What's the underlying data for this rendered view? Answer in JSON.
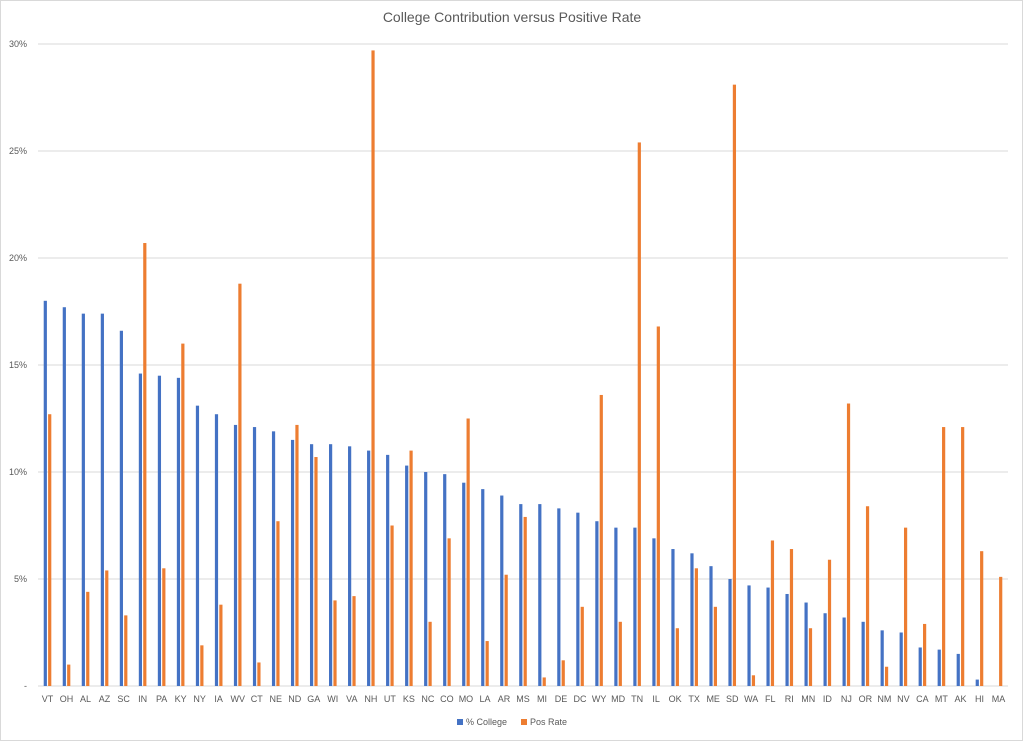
{
  "chart_data": {
    "type": "bar",
    "title": "College Contribution versus Positive Rate",
    "xlabel": "",
    "ylabel": "",
    "ylim": [
      0,
      0.3
    ],
    "yticks": [
      0,
      0.05,
      0.1,
      0.15,
      0.2,
      0.25,
      0.3
    ],
    "ytick_labels": [
      "-",
      "5%",
      "10%",
      "15%",
      "20%",
      "25%",
      "30%"
    ],
    "grid": true,
    "legend_position": "bottom",
    "categories": [
      "VT",
      "OH",
      "AL",
      "AZ",
      "SC",
      "IN",
      "PA",
      "KY",
      "NY",
      "IA",
      "WV",
      "CT",
      "NE",
      "ND",
      "GA",
      "WI",
      "VA",
      "NH",
      "UT",
      "KS",
      "NC",
      "CO",
      "MO",
      "LA",
      "AR",
      "MS",
      "MI",
      "DE",
      "DC",
      "WY",
      "MD",
      "TN",
      "IL",
      "OK",
      "TX",
      "ME",
      "SD",
      "WA",
      "FL",
      "RI",
      "MN",
      "ID",
      "NJ",
      "OR",
      "NM",
      "NV",
      "CA",
      "MT",
      "AK",
      "HI",
      "MA"
    ],
    "series": [
      {
        "name": "% College",
        "color": "#4472c4",
        "values": [
          0.18,
          0.177,
          0.174,
          0.174,
          0.166,
          0.146,
          0.145,
          0.144,
          0.131,
          0.127,
          0.122,
          0.121,
          0.119,
          0.115,
          0.113,
          0.113,
          0.112,
          0.11,
          0.108,
          0.103,
          0.1,
          0.099,
          0.095,
          0.092,
          0.089,
          0.085,
          0.085,
          0.083,
          0.081,
          0.077,
          0.074,
          0.074,
          0.069,
          0.064,
          0.062,
          0.056,
          0.05,
          0.047,
          0.046,
          0.043,
          0.039,
          0.034,
          0.032,
          0.03,
          0.026,
          0.025,
          0.018,
          0.017,
          0.015,
          0.003,
          0.0
        ]
      },
      {
        "name": "Pos Rate",
        "color": "#ed7d31",
        "values": [
          0.127,
          0.01,
          0.044,
          0.054,
          0.033,
          0.207,
          0.055,
          0.16,
          0.019,
          0.038,
          0.188,
          0.011,
          0.077,
          0.122,
          0.107,
          0.04,
          0.042,
          0.297,
          0.075,
          0.11,
          0.03,
          0.069,
          0.125,
          0.021,
          0.052,
          0.079,
          0.004,
          0.012,
          0.037,
          0.136,
          0.03,
          0.254,
          0.168,
          0.027,
          0.055,
          0.037,
          0.281,
          0.005,
          0.068,
          0.064,
          0.027,
          0.059,
          0.132,
          0.084,
          0.009,
          0.074,
          0.029,
          0.121,
          0.121,
          0.063,
          0.051
        ]
      }
    ]
  }
}
